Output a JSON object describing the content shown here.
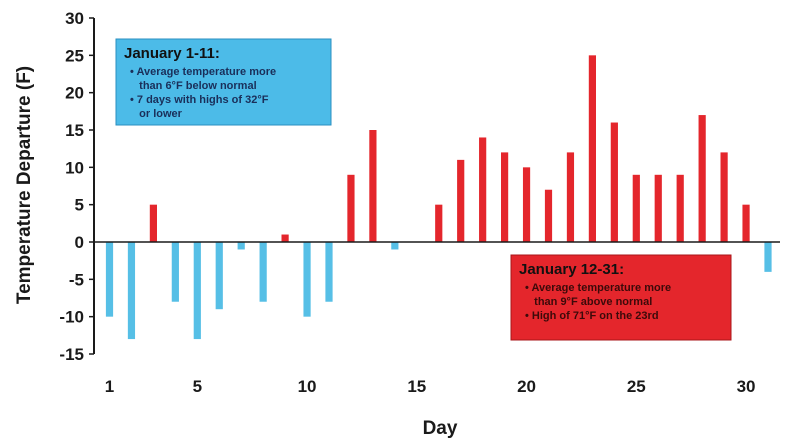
{
  "chart_data": {
    "type": "bar",
    "xlabel": "Day",
    "ylabel": "Temperature Departure (F)",
    "ylim": [
      -15,
      30
    ],
    "xlim": [
      0.5,
      31.5
    ],
    "yticks": [
      30,
      25,
      20,
      15,
      10,
      5,
      0,
      -5,
      -10,
      -15
    ],
    "ytick_labels": [
      "30",
      "25",
      "20",
      "15",
      "10",
      "5",
      "0",
      "-5",
      "-10",
      "-15"
    ],
    "xticks": [
      1,
      5,
      10,
      15,
      20,
      25,
      30
    ],
    "xtick_labels": [
      "1",
      "5",
      "10",
      "15",
      "20",
      "25",
      "30"
    ],
    "grid": false,
    "x": [
      1,
      2,
      3,
      4,
      5,
      6,
      7,
      8,
      9,
      10,
      11,
      12,
      13,
      14,
      15,
      16,
      17,
      18,
      19,
      20,
      21,
      22,
      23,
      24,
      25,
      26,
      27,
      28,
      29,
      30,
      31
    ],
    "values": [
      -10,
      -13,
      5,
      -8,
      -13,
      -9,
      -1,
      -8,
      1,
      -10,
      -8,
      9,
      15,
      -1,
      0,
      5,
      11,
      14,
      12,
      10,
      7,
      12,
      25,
      16,
      9,
      9,
      9,
      17,
      12,
      5,
      -4
    ],
    "colors": {
      "positive": "#e4262c",
      "negative": "#56bfe6",
      "axis": "#1a1a1a"
    },
    "annotations": [
      {
        "id": "cold",
        "title": "January 1-11:",
        "lines": [
          "• Average temperature more",
          "   than 6°F below normal",
          "• 7 days with highs of 32°F",
          "   or lower"
        ],
        "background": "#4cbbe8",
        "border": "#2a8fc0",
        "text_color": "#1a2f5a"
      },
      {
        "id": "warm",
        "title": "January 12-31:",
        "lines": [
          "• Average temperature more",
          "   than 9°F above normal",
          "• High of 71°F on the 23rd"
        ],
        "background": "#e4262c",
        "border": "#a81519",
        "text_color": "#3d0a0a"
      }
    ]
  }
}
